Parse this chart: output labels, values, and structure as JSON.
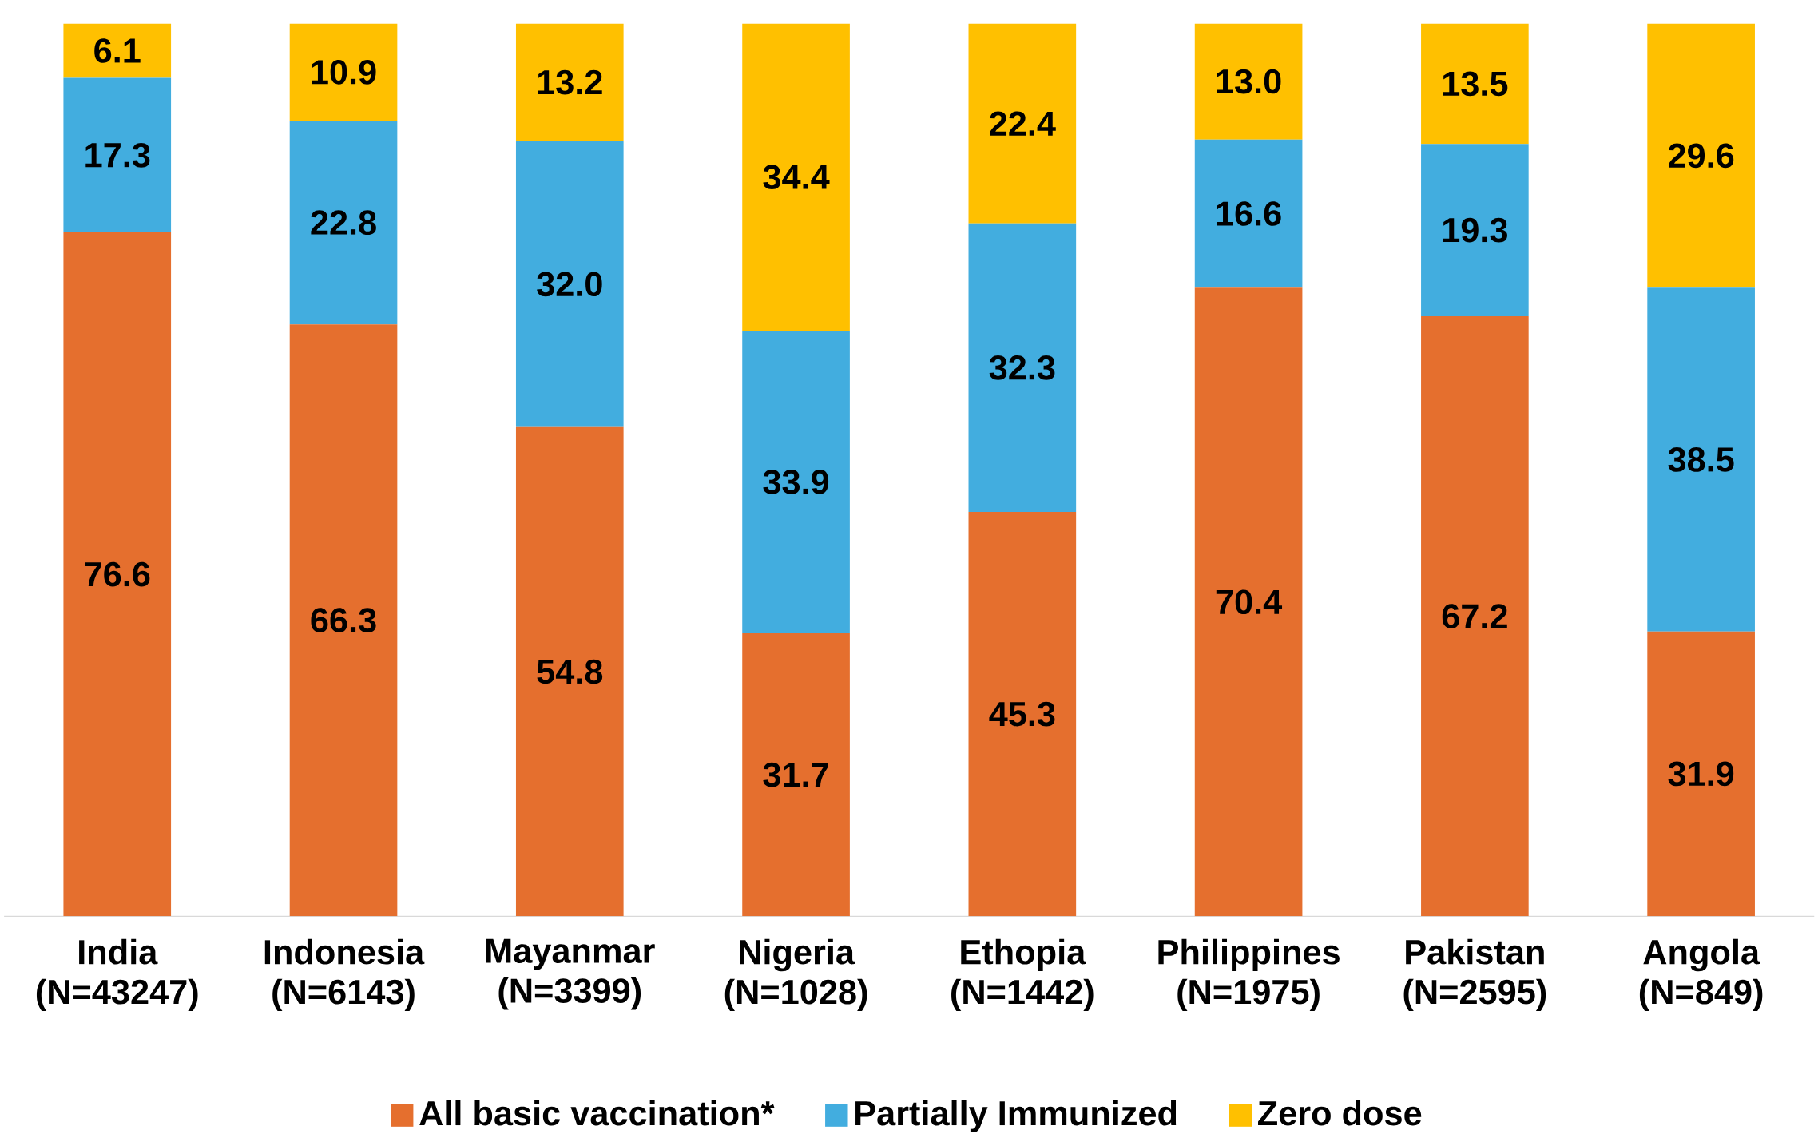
{
  "chart_data": {
    "type": "bar",
    "stacked": true,
    "legend": "bottom",
    "categories": [
      "India (N=43247)",
      "Indonesia (N=6143)",
      "Mayanmar (N=3399)",
      "Nigeria (N=1028)",
      "Ethopia (N=1442)",
      "Philippines (N=1975)",
      "Pakistan (N=2595)",
      "Angola (N=849)"
    ],
    "series": [
      {
        "name": "All basic vaccination*",
        "color": "#e56f2e",
        "values": [
          76.6,
          66.3,
          54.8,
          31.7,
          45.3,
          70.4,
          67.2,
          31.9
        ],
        "value_labels": [
          "76.6",
          "66.3",
          "54.8",
          "31.7",
          "45.3",
          "70.4",
          "67.2",
          "31.9"
        ]
      },
      {
        "name": "Partially Immunized",
        "color": "#42addf",
        "values": [
          17.3,
          22.8,
          32.0,
          33.9,
          32.3,
          16.6,
          19.3,
          38.5
        ],
        "value_labels": [
          "17.3",
          "22.8",
          "32.0",
          "33.9",
          "32.3",
          "16.6",
          "19.3",
          "38.5"
        ]
      },
      {
        "name": "Zero dose",
        "color": "#ffc000",
        "values": [
          6.1,
          10.9,
          13.2,
          34.4,
          22.4,
          13.0,
          13.5,
          29.6
        ],
        "value_labels": [
          "6.1",
          "10.9",
          "13.2",
          "34.4",
          "22.4",
          "13.0",
          "13.5",
          "29.6"
        ]
      }
    ]
  }
}
